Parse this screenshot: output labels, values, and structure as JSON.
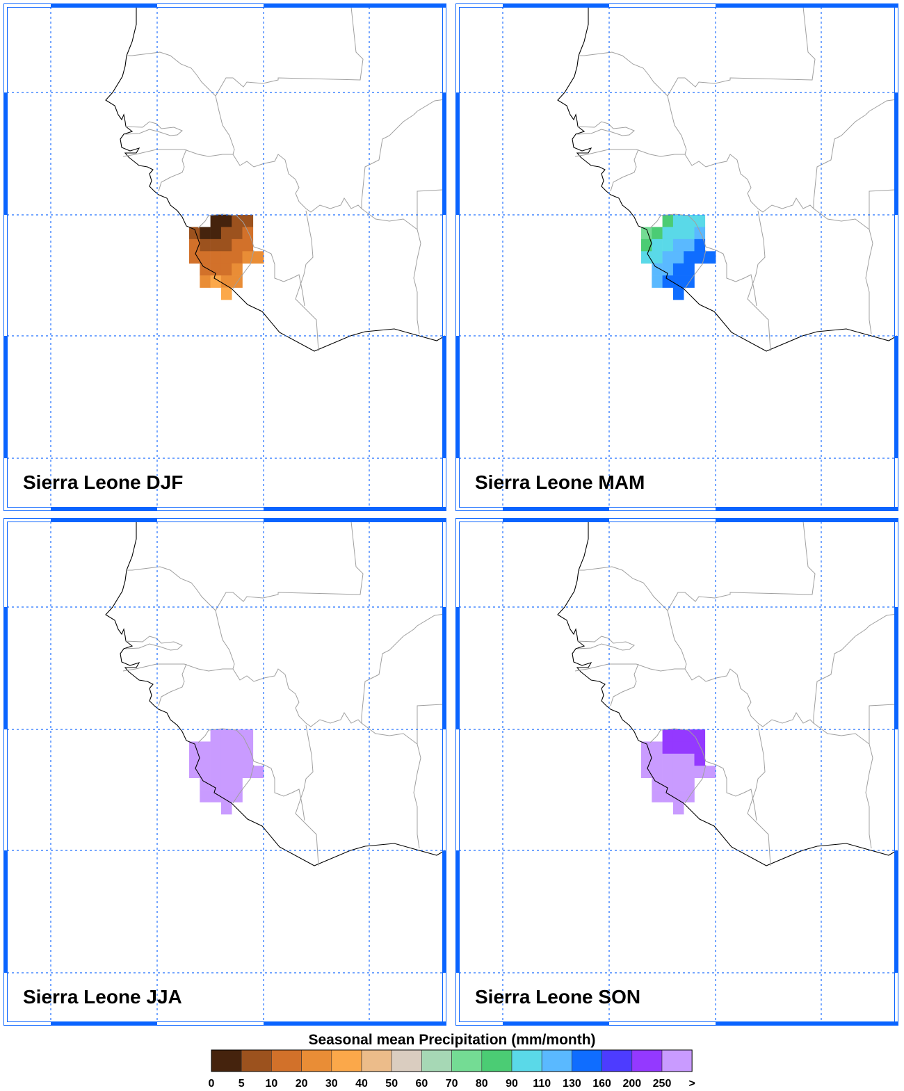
{
  "colorbar": {
    "title": "Seasonal mean Precipitation (mm/month)",
    "labels": [
      "0",
      "5",
      "10",
      "20",
      "30",
      "40",
      "50",
      "60",
      "70",
      "80",
      "90",
      "110",
      "130",
      "160",
      "200",
      "250",
      ">"
    ],
    "colors": [
      "#45230d",
      "#9c521e",
      "#d2712a",
      "#e98d36",
      "#fba84a",
      "#ecbc8a",
      "#dacdc0",
      "#a6d8b5",
      "#74dc94",
      "#4bcc74",
      "#5ad9e8",
      "#5ab9ff",
      "#0f6dff",
      "#4d3cff",
      "#9439ff",
      "#c99bff"
    ]
  },
  "accent_color": "#0a64ff",
  "panels": [
    {
      "title": "Sierra Leone DJF",
      "cells": [
        [
          null,
          null,
          0,
          0,
          1,
          1,
          null
        ],
        [
          1,
          0,
          0,
          1,
          1,
          2,
          null
        ],
        [
          2,
          1,
          1,
          1,
          2,
          2,
          null
        ],
        [
          2,
          2,
          2,
          2,
          2,
          3,
          3
        ],
        [
          null,
          2,
          2,
          2,
          3,
          null,
          null
        ],
        [
          null,
          3,
          4,
          3,
          3,
          null,
          null
        ],
        [
          null,
          null,
          null,
          4,
          null,
          null,
          null
        ]
      ]
    },
    {
      "title": "Sierra Leone MAM",
      "cells": [
        [
          null,
          null,
          9,
          10,
          10,
          10,
          null
        ],
        [
          8,
          9,
          10,
          10,
          10,
          11,
          null
        ],
        [
          9,
          10,
          10,
          11,
          11,
          12,
          null
        ],
        [
          10,
          10,
          11,
          11,
          12,
          12,
          12
        ],
        [
          null,
          11,
          11,
          12,
          12,
          null,
          null
        ],
        [
          null,
          11,
          12,
          12,
          12,
          null,
          null
        ],
        [
          null,
          null,
          null,
          12,
          null,
          null,
          null
        ]
      ]
    },
    {
      "title": "Sierra Leone JJA",
      "cells": [
        [
          null,
          null,
          15,
          15,
          15,
          15,
          null
        ],
        [
          15,
          15,
          15,
          15,
          15,
          15,
          null
        ],
        [
          15,
          15,
          15,
          15,
          15,
          15,
          null
        ],
        [
          15,
          15,
          15,
          15,
          15,
          15,
          15
        ],
        [
          null,
          15,
          15,
          15,
          15,
          null,
          null
        ],
        [
          null,
          15,
          15,
          15,
          15,
          null,
          null
        ],
        [
          null,
          null,
          null,
          15,
          null,
          null,
          null
        ]
      ]
    },
    {
      "title": "Sierra Leone SON",
      "cells": [
        [
          null,
          null,
          14,
          14,
          14,
          14,
          null
        ],
        [
          15,
          15,
          14,
          14,
          14,
          14,
          null
        ],
        [
          15,
          15,
          15,
          15,
          15,
          14,
          null
        ],
        [
          15,
          15,
          15,
          15,
          15,
          15,
          15
        ],
        [
          null,
          15,
          15,
          15,
          15,
          null,
          null
        ],
        [
          null,
          15,
          15,
          15,
          15,
          null,
          null
        ],
        [
          null,
          null,
          null,
          15,
          null,
          null,
          null
        ]
      ]
    }
  ]
}
